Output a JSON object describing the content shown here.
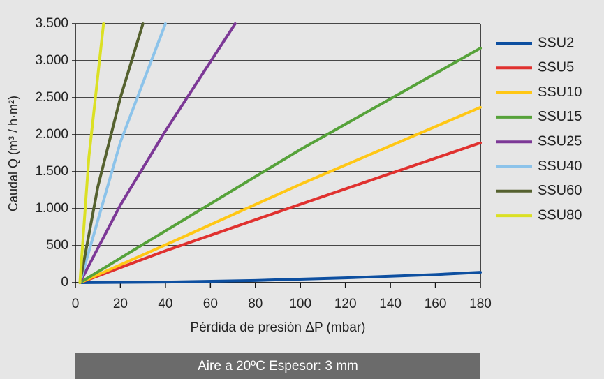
{
  "chart_data": {
    "type": "line",
    "x_label": "Pérdida de presión ΔP (mbar)",
    "y_label": "Caudal Q (m³ / h·m²)",
    "annotation": "Aire a 20ºC  Espesor: 3 mm",
    "xlim": [
      0,
      180
    ],
    "xticks": [
      0,
      20,
      40,
      60,
      80,
      100,
      120,
      140,
      160,
      180
    ],
    "ylim": [
      0,
      3500
    ],
    "yticks": [
      0,
      500,
      {
        "value": 1000,
        "label": "1.000"
      },
      {
        "value": 1500,
        "label": "1.500"
      },
      {
        "value": 2000,
        "label": "2.000"
      },
      {
        "value": 2500,
        "label": "2.500"
      },
      {
        "value": 3000,
        "label": "3.000"
      },
      {
        "value": 3500,
        "label": "3.500"
      }
    ],
    "grid": true,
    "legend": "right",
    "series": [
      {
        "name": "SSU2",
        "color": "#0d4fa0",
        "x": [
          2,
          40,
          80,
          120,
          160,
          180
        ],
        "values": [
          0,
          8,
          30,
          65,
          110,
          140
        ]
      },
      {
        "name": "SSU5",
        "color": "#e0312f",
        "x": [
          2,
          40,
          100,
          180
        ],
        "values": [
          0,
          430,
          1060,
          1890
        ]
      },
      {
        "name": "SSU10",
        "color": "#ffc715",
        "x": [
          2,
          40,
          100,
          180
        ],
        "values": [
          0,
          510,
          1330,
          2370
        ]
      },
      {
        "name": "SSU15",
        "color": "#56a23a",
        "x": [
          2,
          40,
          100,
          180
        ],
        "values": [
          0,
          700,
          1800,
          3170
        ]
      },
      {
        "name": "SSU25",
        "color": "#7c3896",
        "x": [
          2,
          20,
          40,
          71
        ],
        "values": [
          0,
          1050,
          2050,
          3500
        ]
      },
      {
        "name": "SSU40",
        "color": "#8cc3ea",
        "x": [
          2,
          20,
          40
        ],
        "values": [
          0,
          1900,
          3500
        ]
      },
      {
        "name": "SSU60",
        "color": "#55612f",
        "x": [
          2,
          10,
          20,
          30
        ],
        "values": [
          0,
          1300,
          2500,
          3500
        ]
      },
      {
        "name": "SSU80",
        "color": "#dbe024",
        "x": [
          2,
          6,
          12.5
        ],
        "values": [
          0,
          1700,
          3500
        ]
      }
    ]
  }
}
